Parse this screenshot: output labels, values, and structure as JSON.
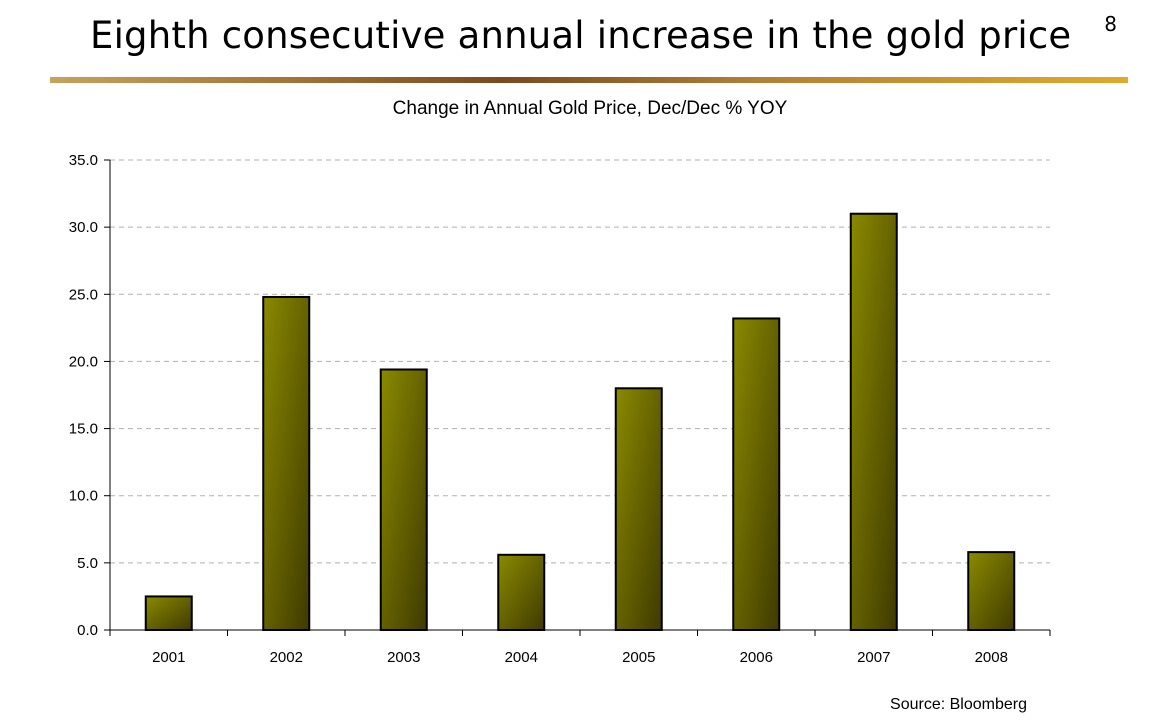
{
  "slide": {
    "title": "Eighth consecutive annual increase in the gold price",
    "page_number": "8",
    "source": "Source: Bloomberg"
  },
  "colors": {
    "bar_light": "#8a8a00",
    "bar_dark": "#3f3a00",
    "gridline": "#b0b0b0",
    "title_rule_accent": "#c9942e"
  },
  "chart_data": {
    "type": "bar",
    "title": "Change in Annual Gold Price, Dec/Dec % YOY",
    "xlabel": "",
    "ylabel": "",
    "categories": [
      "2001",
      "2002",
      "2003",
      "2004",
      "2005",
      "2006",
      "2007",
      "2008"
    ],
    "values": [
      2.5,
      24.8,
      19.4,
      5.6,
      18.0,
      23.2,
      31.0,
      5.8
    ],
    "ylim": [
      0,
      35
    ],
    "yticks": [
      "0.0",
      "5.0",
      "10.0",
      "15.0",
      "20.0",
      "25.0",
      "30.0",
      "35.0"
    ],
    "grid": true,
    "legend": "none"
  }
}
